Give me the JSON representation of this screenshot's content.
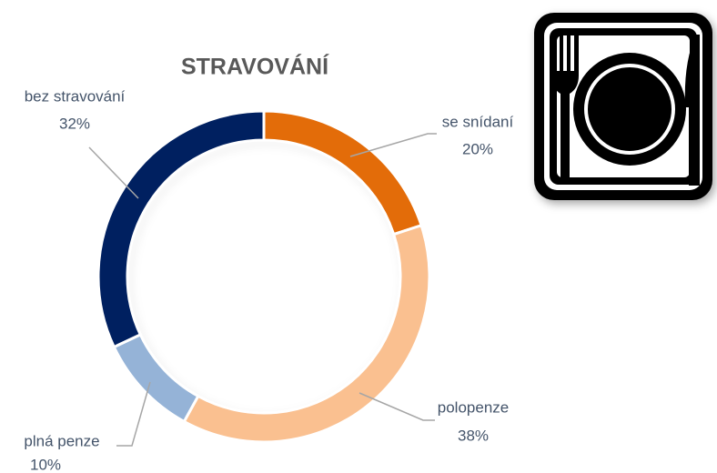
{
  "chart_data": {
    "type": "donut",
    "title": "STRAVOVÁNÍ",
    "categories": [
      "se snídaní",
      "polopenze",
      "plná penze",
      "bez stravování"
    ],
    "values": [
      20,
      38,
      10,
      32
    ],
    "value_labels": [
      "20%",
      "38%",
      "10%",
      "32%"
    ],
    "colors": [
      "#e36c09",
      "#fac090",
      "#95b3d7",
      "#002060"
    ]
  }
}
